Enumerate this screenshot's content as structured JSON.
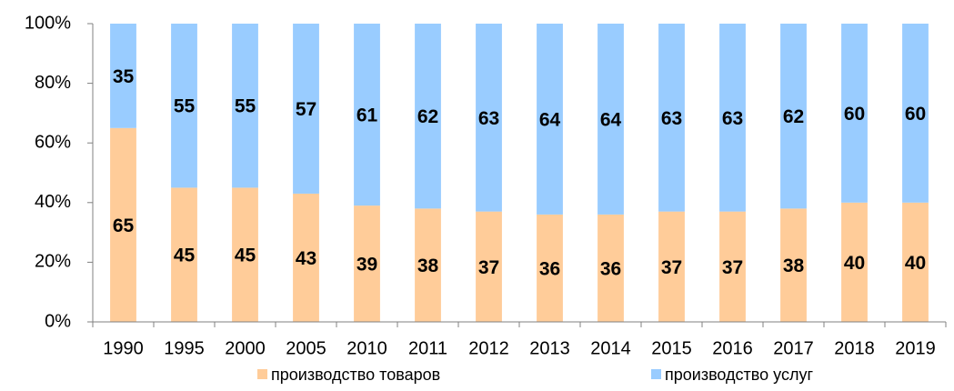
{
  "chart_data": {
    "type": "stacked-bar",
    "categories": [
      "1990",
      "1995",
      "2000",
      "2005",
      "2010",
      "2011",
      "2012",
      "2013",
      "2014",
      "2015",
      "2016",
      "2017",
      "2018",
      "2019"
    ],
    "series": [
      {
        "name": "производство товаров",
        "color": "#ffcc99",
        "values": [
          65,
          45,
          45,
          43,
          39,
          38,
          37,
          36,
          36,
          37,
          37,
          38,
          40,
          40
        ]
      },
      {
        "name": "производство услуг",
        "color": "#99ccff",
        "values": [
          35,
          55,
          55,
          57,
          61,
          62,
          63,
          64,
          64,
          63,
          63,
          62,
          60,
          60
        ]
      }
    ],
    "ylim": [
      0,
      100
    ],
    "yticks": [
      {
        "value": 0,
        "label": "0%"
      },
      {
        "value": 20,
        "label": "20%"
      },
      {
        "value": 40,
        "label": "40%"
      },
      {
        "value": 60,
        "label": "60%"
      },
      {
        "value": 80,
        "label": "80%"
      },
      {
        "value": 100,
        "label": "100%"
      }
    ],
    "legend": "bottom"
  }
}
